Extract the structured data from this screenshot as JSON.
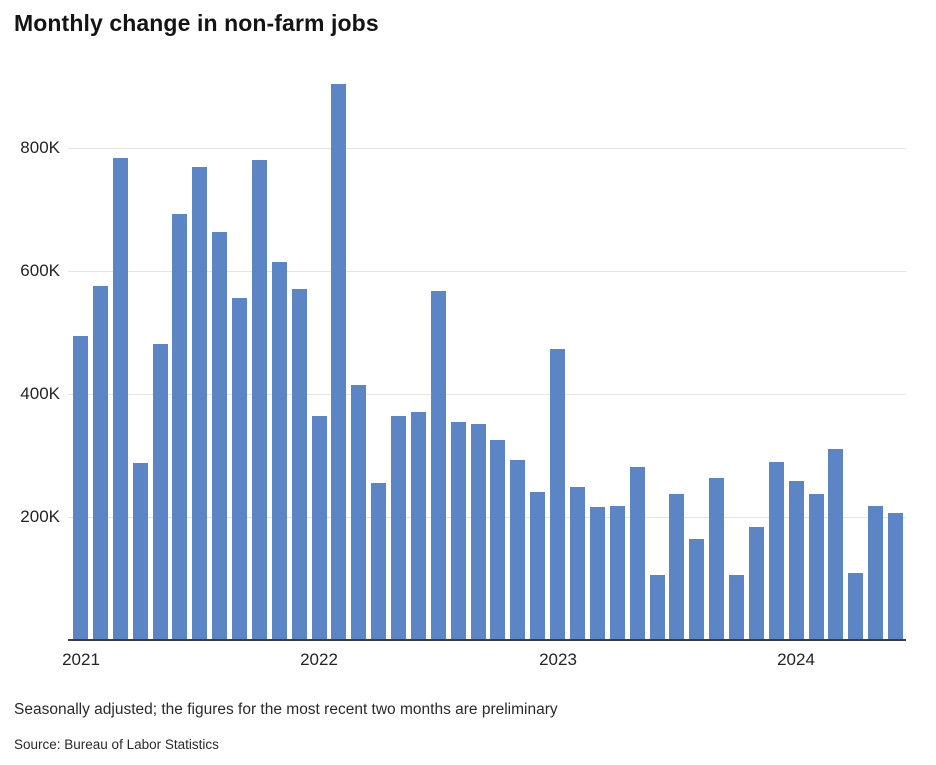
{
  "chart_data": {
    "type": "bar",
    "title": "Monthly change in non-farm jobs",
    "bar_color": "#5b85c5",
    "grid": true,
    "legend": "none",
    "categories": [
      "Jan 2021",
      "Feb 2021",
      "Mar 2021",
      "Apr 2021",
      "May 2021",
      "Jun 2021",
      "Jul 2021",
      "Aug 2021",
      "Sep 2021",
      "Oct 2021",
      "Nov 2021",
      "Dec 2021",
      "Jan 2022",
      "Feb 2022",
      "Mar 2022",
      "Apr 2022",
      "May 2022",
      "Jun 2022",
      "Jul 2022",
      "Aug 2022",
      "Sep 2022",
      "Oct 2022",
      "Nov 2022",
      "Dec 2022",
      "Jan 2023",
      "Feb 2023",
      "Mar 2023",
      "Apr 2023",
      "May 2023",
      "Jun 2023",
      "Jul 2023",
      "Aug 2023",
      "Sep 2023",
      "Oct 2023",
      "Nov 2023",
      "Dec 2023",
      "Jan 2024",
      "Feb 2024",
      "Mar 2024",
      "Apr 2024",
      "May 2024",
      "Jun 2024"
    ],
    "values_thousands": [
      494,
      576,
      784,
      287,
      482,
      693,
      769,
      663,
      556,
      780,
      615,
      570,
      365,
      904,
      414,
      255,
      365,
      371,
      568,
      354,
      351,
      325,
      292,
      240,
      473,
      248,
      217,
      218,
      282,
      106,
      237,
      165,
      263,
      106,
      183,
      290,
      258,
      237,
      311,
      109,
      218,
      206
    ],
    "y_axis": {
      "tick_values_thousands": [
        200,
        400,
        600,
        800
      ],
      "tick_labels": [
        "200K",
        "400K",
        "600K",
        "800K"
      ],
      "range_thousands": [
        0,
        940
      ]
    },
    "x_axis": {
      "ticks": [
        {
          "label": "2021",
          "month_index": 0
        },
        {
          "label": "2022",
          "month_index": 12
        },
        {
          "label": "2023",
          "month_index": 24
        },
        {
          "label": "2024",
          "month_index": 36
        }
      ]
    }
  },
  "notes": {
    "footnote": "Seasonally adjusted; the figures for the most recent two months are preliminary",
    "source": "Source: Bureau of Labor Statistics"
  },
  "colors": {
    "bar": "#5b85c5",
    "gridline": "#e4e4e4",
    "axis": "#3d3d3d",
    "text": "#242424"
  }
}
